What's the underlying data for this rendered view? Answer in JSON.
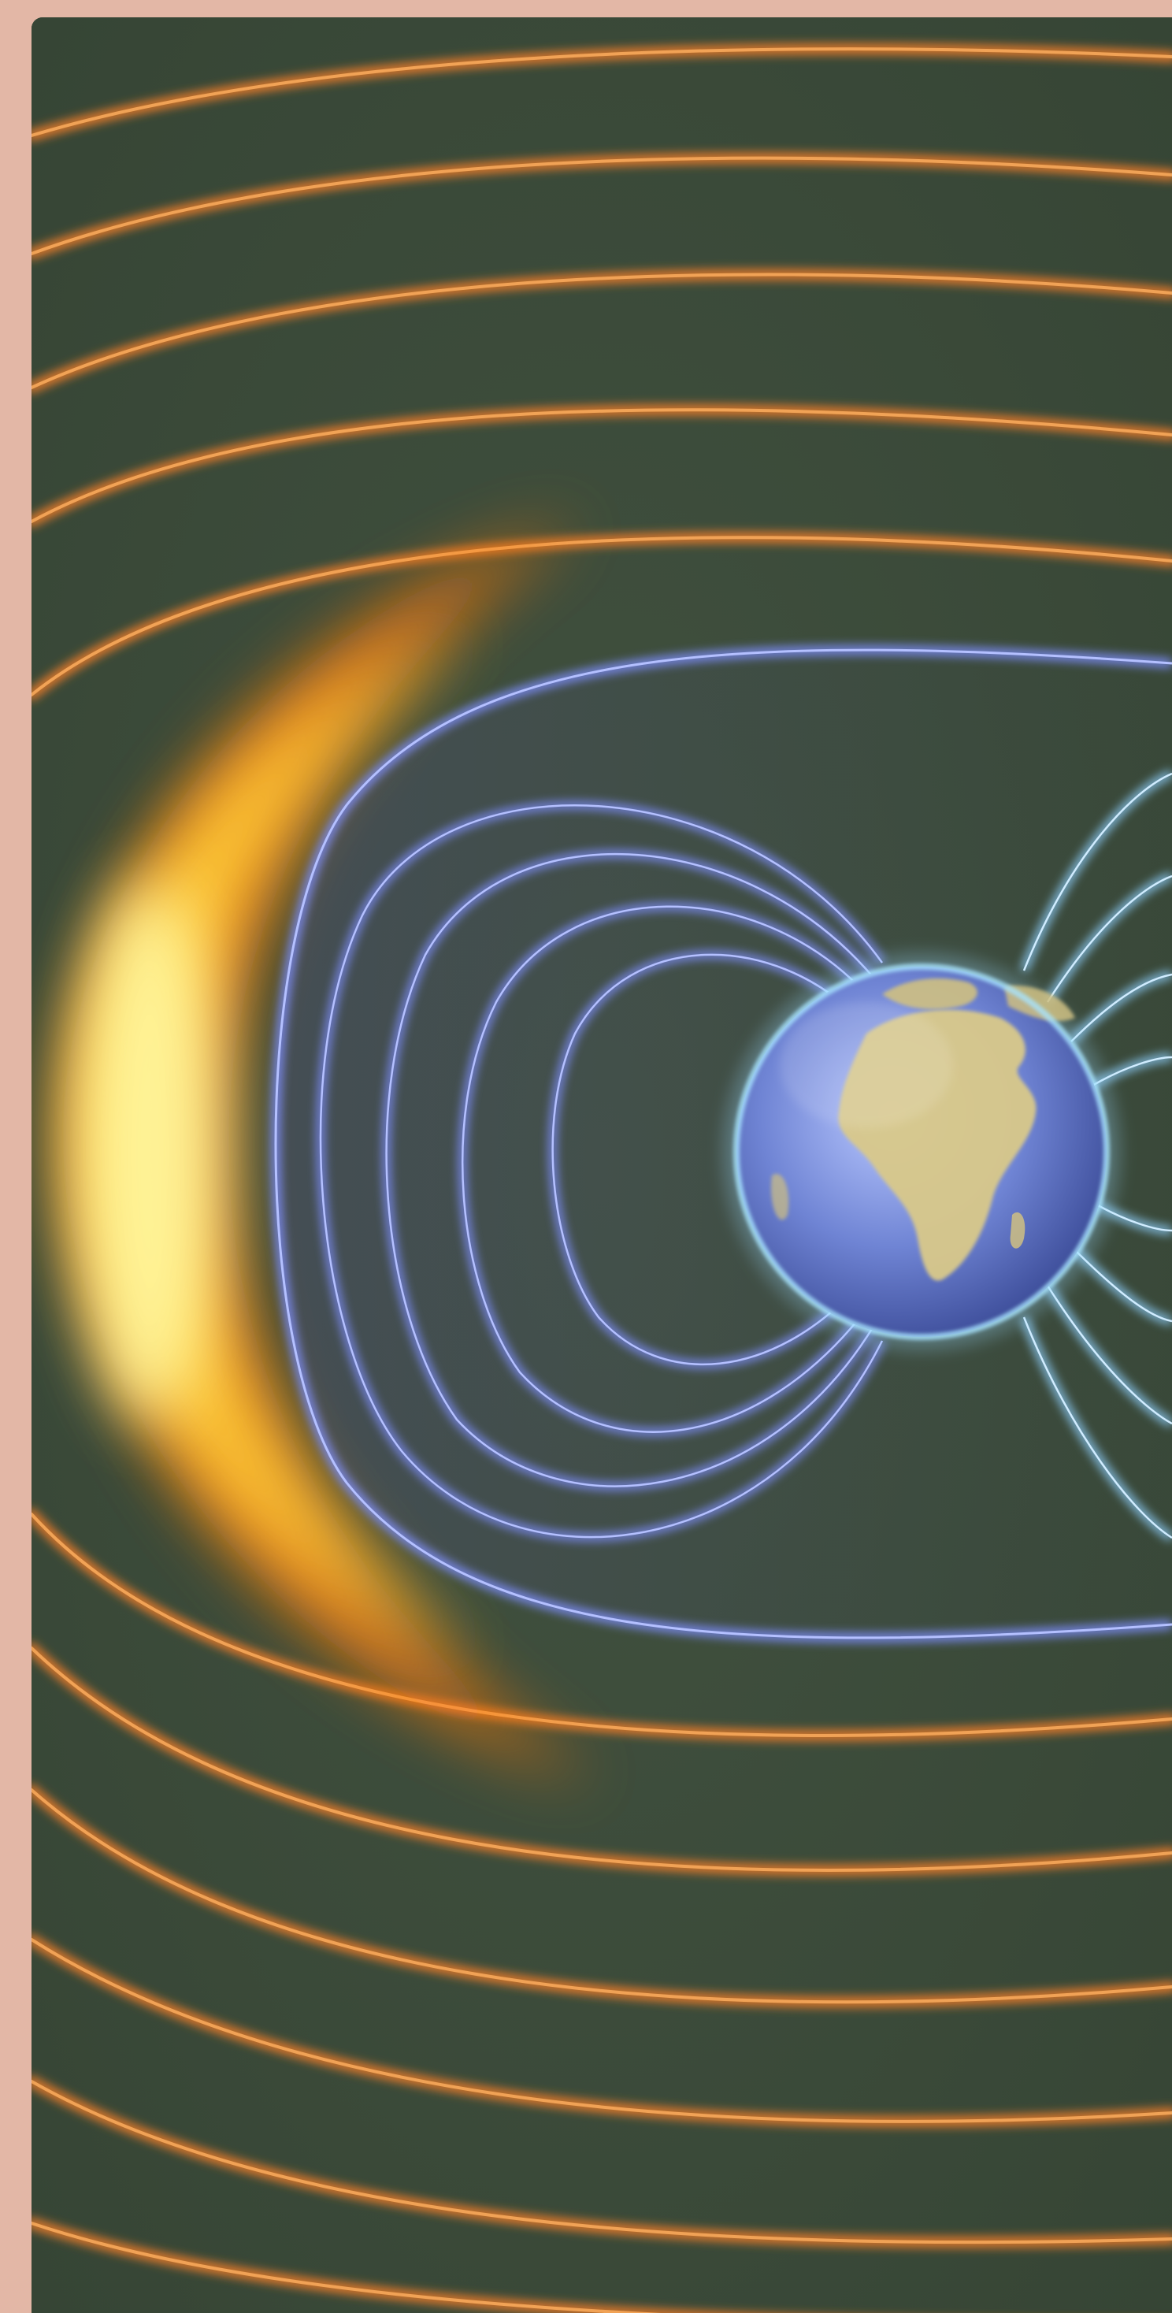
{
  "illustration": {
    "subject": "earth-magnetosphere-illustration",
    "colors": {
      "border": "#e3b7a6",
      "background": "#3f4f3a",
      "solar_wind_lines": "#e0782a",
      "bow_shock_core": "#fff27a",
      "bow_shock_outer": "#ff7a10",
      "field_lines": "#7f8fff",
      "ocean": "#6f8ad8",
      "land": "#d9c98a"
    }
  }
}
